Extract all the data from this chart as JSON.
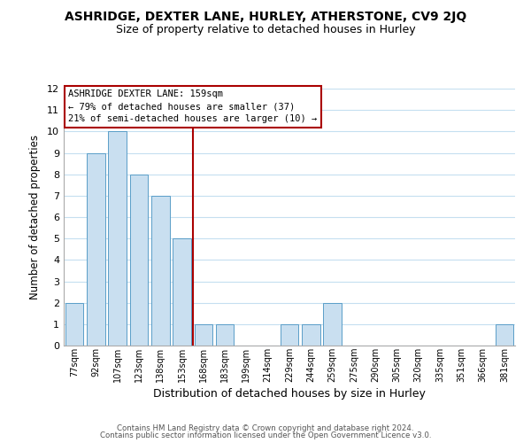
{
  "title": "ASHRIDGE, DEXTER LANE, HURLEY, ATHERSTONE, CV9 2JQ",
  "subtitle": "Size of property relative to detached houses in Hurley",
  "xlabel": "Distribution of detached houses by size in Hurley",
  "ylabel": "Number of detached properties",
  "bar_labels": [
    "77sqm",
    "92sqm",
    "107sqm",
    "123sqm",
    "138sqm",
    "153sqm",
    "168sqm",
    "183sqm",
    "199sqm",
    "214sqm",
    "229sqm",
    "244sqm",
    "259sqm",
    "275sqm",
    "290sqm",
    "305sqm",
    "320sqm",
    "335sqm",
    "351sqm",
    "366sqm",
    "381sqm"
  ],
  "bar_values": [
    2,
    9,
    10,
    8,
    7,
    5,
    1,
    1,
    0,
    0,
    1,
    1,
    2,
    0,
    0,
    0,
    0,
    0,
    0,
    0,
    1
  ],
  "bar_color": "#c9dff0",
  "bar_edge_color": "#5a9ec8",
  "ylim": [
    0,
    12
  ],
  "yticks": [
    0,
    1,
    2,
    3,
    4,
    5,
    6,
    7,
    8,
    9,
    10,
    11,
    12
  ],
  "red_line_x": 5.5,
  "red_line_color": "#aa0000",
  "annotation_title": "ASHRIDGE DEXTER LANE: 159sqm",
  "annotation_line1": "← 79% of detached houses are smaller (37)",
  "annotation_line2": "21% of semi-detached houses are larger (10) →",
  "annotation_box_color": "#ffffff",
  "annotation_box_edge": "#aa0000",
  "footer1": "Contains HM Land Registry data © Crown copyright and database right 2024.",
  "footer2": "Contains public sector information licensed under the Open Government Licence v3.0.",
  "background_color": "#ffffff",
  "grid_color": "#c5dff0"
}
